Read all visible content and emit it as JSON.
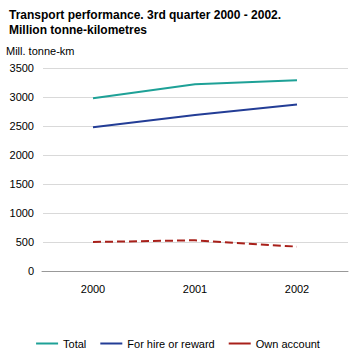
{
  "chart_data": {
    "type": "line",
    "title": "Transport performance. 3rd quarter 2000 - 2002.",
    "subtitle": "Million tonne-kilometres",
    "y_label": "Mill. tonne-km",
    "categories": [
      "2000",
      "2001",
      "2002"
    ],
    "series": [
      {
        "name": "Total",
        "color": "#1ea197",
        "line_style": "solid",
        "values": [
          2980,
          3220,
          3290
        ]
      },
      {
        "name": "For hire or reward",
        "color": "#233d96",
        "line_style": "solid",
        "values": [
          2480,
          2690,
          2870
        ]
      },
      {
        "name": "Own account",
        "color": "#a8201a",
        "line_style": "dashed",
        "values": [
          500,
          530,
          420
        ]
      }
    ],
    "ylim": [
      0,
      3500
    ],
    "yticks": [
      0,
      500,
      1000,
      1500,
      2000,
      2500,
      3000,
      3500
    ],
    "grid": true,
    "legend": "bottom"
  }
}
